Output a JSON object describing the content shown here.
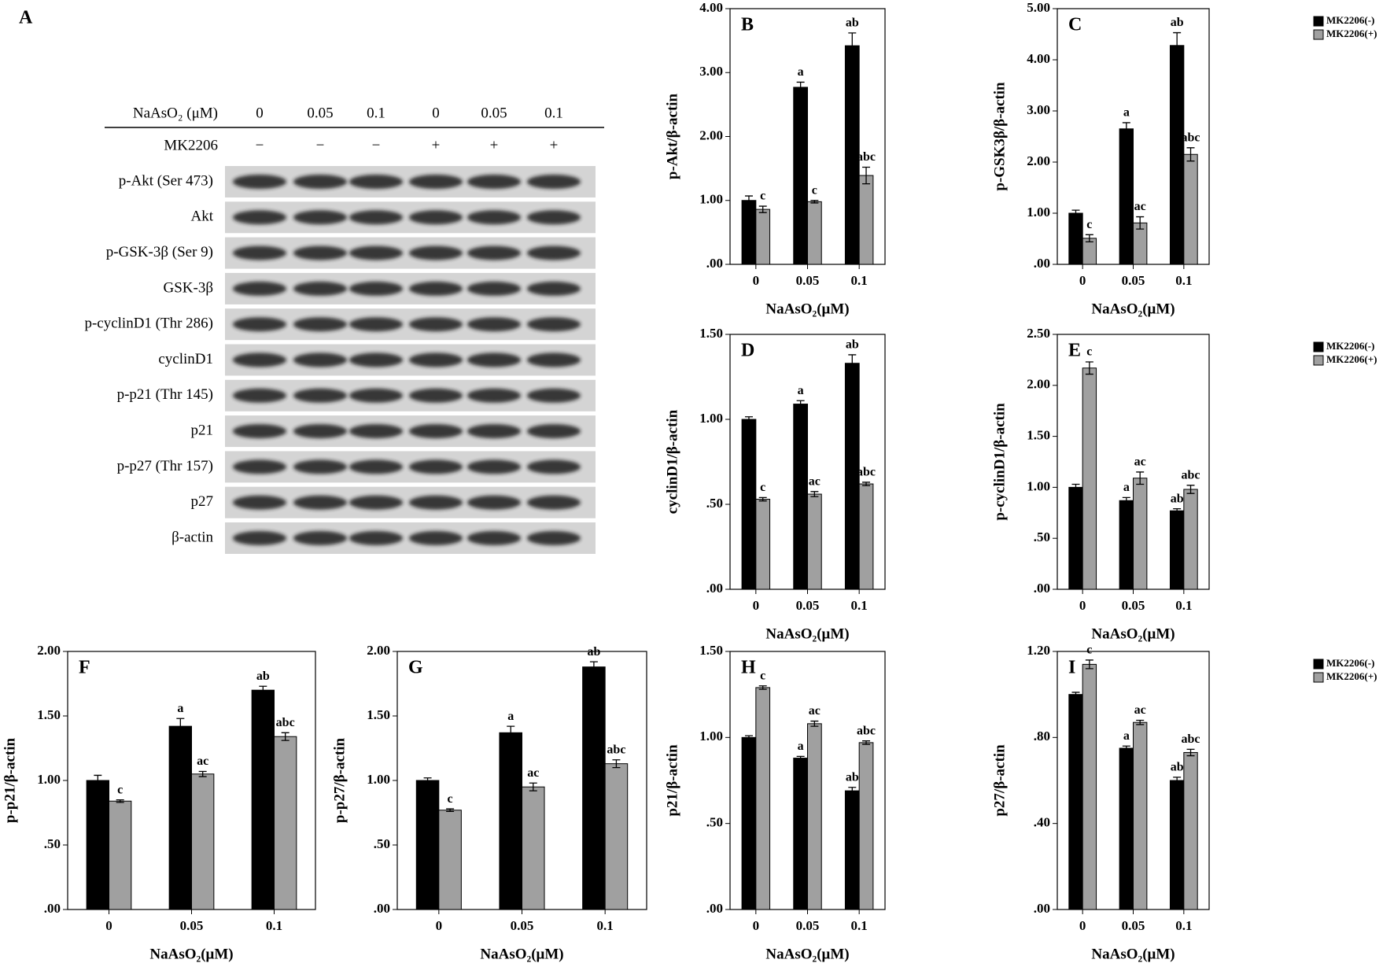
{
  "blot": {
    "label": "A",
    "treatments": [
      {
        "name": "NaAsO₂ (μM)",
        "lanes": [
          "0",
          "0.05",
          "0.1",
          "0",
          "0.05",
          "0.1"
        ]
      },
      {
        "name": "MK2206",
        "lanes": [
          "−",
          "−",
          "−",
          "+",
          "+",
          "+"
        ]
      }
    ],
    "rows": [
      "p-Akt (Ser 473)",
      "Akt",
      "p-GSK-3β (Ser 9)",
      "GSK-3β",
      "p-cyclinD1 (Thr 286)",
      "cyclinD1",
      "p-p21 (Thr 145)",
      "p21",
      "p-p27 (Thr 157)",
      "p27",
      "β-actin"
    ]
  },
  "chart_data": [
    {
      "type": "bar",
      "panel": "B",
      "y_label": "p-Akt/β-actin",
      "x_label": "NaAsO₂(μM)",
      "categories": [
        "0",
        "0.05",
        "0.1"
      ],
      "series": [
        {
          "color": "#000000",
          "values": [
            1.0,
            2.77,
            3.42
          ],
          "errors": [
            0.07,
            0.08,
            0.2
          ],
          "annotations": [
            null,
            "a",
            "ab"
          ]
        },
        {
          "color": "#a0a0a0",
          "values": [
            0.86,
            0.98,
            1.39
          ],
          "errors": [
            0.05,
            0.02,
            0.13
          ],
          "annotations": [
            "c",
            "c",
            "abc"
          ]
        }
      ],
      "ylim": [
        0,
        4
      ],
      "yticks": [
        {
          "value": 0,
          "label": ".00"
        },
        {
          "value": 1,
          "label": "1.00"
        },
        {
          "value": 2,
          "label": "2.00"
        },
        {
          "value": 3,
          "label": "3.00"
        },
        {
          "value": 4,
          "label": "4.00"
        }
      ]
    },
    {
      "type": "bar",
      "panel": "C",
      "y_label": "p-GSK3β/β-actin",
      "x_label": "NaAsO₂(μM)",
      "categories": [
        "0",
        "0.05",
        "0.1"
      ],
      "legend": "right",
      "series": [
        {
          "name": "MK2206(-)",
          "color": "#000000",
          "values": [
            1.0,
            2.65,
            4.28
          ],
          "errors": [
            0.06,
            0.12,
            0.25
          ],
          "annotations": [
            null,
            "a",
            "ab"
          ]
        },
        {
          "name": "MK2206(+)",
          "color": "#a0a0a0",
          "values": [
            0.51,
            0.81,
            2.15
          ],
          "errors": [
            0.07,
            0.12,
            0.13
          ],
          "annotations": [
            "c",
            "ac",
            "abc"
          ]
        }
      ],
      "ylim": [
        0,
        5
      ],
      "yticks": [
        {
          "value": 0,
          "label": ".00"
        },
        {
          "value": 1,
          "label": "1.00"
        },
        {
          "value": 2,
          "label": "2.00"
        },
        {
          "value": 3,
          "label": "3.00"
        },
        {
          "value": 4,
          "label": "4.00"
        },
        {
          "value": 5,
          "label": "5.00"
        }
      ]
    },
    {
      "type": "bar",
      "panel": "D",
      "y_label": "cyclinD1/β-actin",
      "x_label": "NaAsO₂(μM)",
      "categories": [
        "0",
        "0.05",
        "0.1"
      ],
      "series": [
        {
          "color": "#000000",
          "values": [
            1.0,
            1.09,
            1.33
          ],
          "errors": [
            0.015,
            0.02,
            0.05
          ],
          "annotations": [
            null,
            "a",
            "ab"
          ]
        },
        {
          "color": "#a0a0a0",
          "values": [
            0.53,
            0.56,
            0.62
          ],
          "errors": [
            0.01,
            0.015,
            0.01
          ],
          "annotations": [
            "c",
            "ac",
            "abc"
          ]
        }
      ],
      "ylim": [
        0,
        1.5
      ],
      "yticks": [
        {
          "value": 0,
          "label": ".00"
        },
        {
          "value": 0.5,
          "label": ".50"
        },
        {
          "value": 1,
          "label": "1.00"
        },
        {
          "value": 1.5,
          "label": "1.50"
        }
      ]
    },
    {
      "type": "bar",
      "panel": "E",
      "y_label": "p-cyclinD1/β-actin",
      "x_label": "NaAsO₂(μM)",
      "categories": [
        "0",
        "0.05",
        "0.1"
      ],
      "legend": "right",
      "series": [
        {
          "name": "MK2206(-)",
          "color": "#000000",
          "values": [
            1.0,
            0.87,
            0.77
          ],
          "errors": [
            0.03,
            0.03,
            0.02
          ],
          "annotations": [
            null,
            "a",
            "ab"
          ]
        },
        {
          "name": "MK2206(+)",
          "color": "#a0a0a0",
          "values": [
            2.17,
            1.09,
            0.98
          ],
          "errors": [
            0.06,
            0.06,
            0.04
          ],
          "annotations": [
            "c",
            "ac",
            "abc"
          ]
        }
      ],
      "ylim": [
        0,
        2.5
      ],
      "yticks": [
        {
          "value": 0,
          "label": ".00"
        },
        {
          "value": 0.5,
          "label": ".50"
        },
        {
          "value": 1,
          "label": "1.00"
        },
        {
          "value": 1.5,
          "label": "1.50"
        },
        {
          "value": 2,
          "label": "2.00"
        },
        {
          "value": 2.5,
          "label": "2.50"
        }
      ]
    },
    {
      "type": "bar",
      "panel": "F",
      "y_label": "p-p21/β-actin",
      "x_label": "NaAsO₂(μM)",
      "categories": [
        "0",
        "0.05",
        "0.1"
      ],
      "series": [
        {
          "color": "#000000",
          "values": [
            1.0,
            1.42,
            1.7
          ],
          "errors": [
            0.04,
            0.06,
            0.03
          ],
          "annotations": [
            null,
            "a",
            "ab"
          ]
        },
        {
          "color": "#a0a0a0",
          "values": [
            0.84,
            1.05,
            1.34
          ],
          "errors": [
            0.01,
            0.02,
            0.03
          ],
          "annotations": [
            "c",
            "ac",
            "abc"
          ]
        }
      ],
      "ylim": [
        0,
        2
      ],
      "yticks": [
        {
          "value": 0,
          "label": ".00"
        },
        {
          "value": 0.5,
          "label": ".50"
        },
        {
          "value": 1,
          "label": "1.00"
        },
        {
          "value": 1.5,
          "label": "1.50"
        },
        {
          "value": 2,
          "label": "2.00"
        }
      ]
    },
    {
      "type": "bar",
      "panel": "G",
      "y_label": "p-p27/β-actin",
      "x_label": "NaAsO₂(μM)",
      "categories": [
        "0",
        "0.05",
        "0.1"
      ],
      "series": [
        {
          "color": "#000000",
          "values": [
            1.0,
            1.37,
            1.88
          ],
          "errors": [
            0.02,
            0.05,
            0.04
          ],
          "annotations": [
            null,
            "a",
            "ab"
          ]
        },
        {
          "color": "#a0a0a0",
          "values": [
            0.77,
            0.95,
            1.13
          ],
          "errors": [
            0.01,
            0.03,
            0.03
          ],
          "annotations": [
            "c",
            "ac",
            "abc"
          ]
        }
      ],
      "ylim": [
        0,
        2
      ],
      "yticks": [
        {
          "value": 0,
          "label": ".00"
        },
        {
          "value": 0.5,
          "label": ".50"
        },
        {
          "value": 1,
          "label": "1.00"
        },
        {
          "value": 1.5,
          "label": "1.50"
        },
        {
          "value": 2,
          "label": "2.00"
        }
      ]
    },
    {
      "type": "bar",
      "panel": "H",
      "y_label": "p21/β-actin",
      "x_label": "NaAsO₂(μM)",
      "categories": [
        "0",
        "0.05",
        "0.1"
      ],
      "series": [
        {
          "color": "#000000",
          "values": [
            1.0,
            0.88,
            0.69
          ],
          "errors": [
            0.01,
            0.01,
            0.02
          ],
          "annotations": [
            null,
            "a",
            "ab"
          ]
        },
        {
          "color": "#a0a0a0",
          "values": [
            1.29,
            1.08,
            0.97
          ],
          "errors": [
            0.01,
            0.015,
            0.01
          ],
          "annotations": [
            "c",
            "ac",
            "abc"
          ]
        }
      ],
      "ylim": [
        0,
        1.5
      ],
      "yticks": [
        {
          "value": 0,
          "label": ".00"
        },
        {
          "value": 0.5,
          "label": ".50"
        },
        {
          "value": 1,
          "label": "1.00"
        },
        {
          "value": 1.5,
          "label": "1.50"
        }
      ]
    },
    {
      "type": "bar",
      "panel": "I",
      "y_label": "p27/β-actin",
      "x_label": "NaAsO₂(μM)",
      "categories": [
        "0",
        "0.05",
        "0.1"
      ],
      "legend": "right",
      "series": [
        {
          "name": "MK2206(-)",
          "color": "#000000",
          "values": [
            1.0,
            0.75,
            0.6
          ],
          "errors": [
            0.01,
            0.01,
            0.015
          ],
          "annotations": [
            null,
            "a",
            "ab"
          ]
        },
        {
          "name": "MK2206(+)",
          "color": "#a0a0a0",
          "values": [
            1.14,
            0.87,
            0.73
          ],
          "errors": [
            0.02,
            0.01,
            0.015
          ],
          "annotations": [
            "c",
            "ac",
            "abc"
          ]
        }
      ],
      "ylim": [
        0,
        1.2
      ],
      "yticks": [
        {
          "value": 0,
          "label": ".00"
        },
        {
          "value": 0.4,
          "label": ".40"
        },
        {
          "value": 0.8,
          "label": ".80"
        },
        {
          "value": 1.2,
          "label": "1.20"
        }
      ]
    }
  ]
}
